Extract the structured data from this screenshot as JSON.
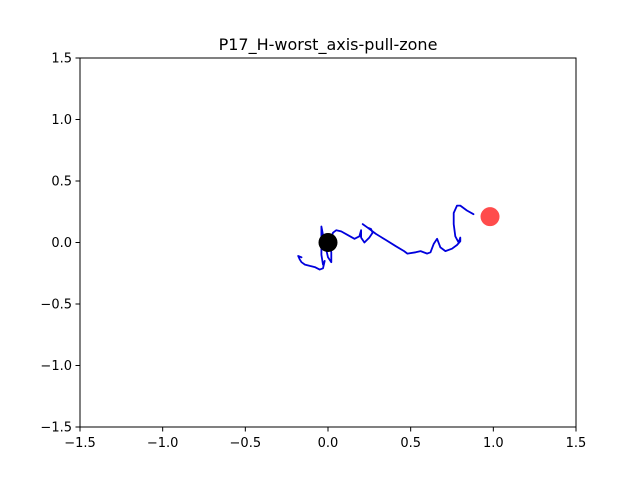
{
  "chart_data": {
    "type": "line",
    "title": "P17_H-worst_axis-pull-zone",
    "xlabel": "",
    "ylabel": "",
    "xlim": [
      -1.5,
      1.5
    ],
    "ylim": [
      -1.5,
      1.5
    ],
    "grid": false,
    "x_ticks": [
      -1.5,
      -1.0,
      -0.5,
      0.0,
      0.5,
      1.0,
      1.5
    ],
    "x_tick_labels": [
      "−1.5",
      "−1.0",
      "−0.5",
      "0.0",
      "0.5",
      "1.0",
      "1.5"
    ],
    "y_ticks": [
      -1.5,
      -1.0,
      -0.5,
      0.0,
      0.5,
      1.0,
      1.5
    ],
    "y_tick_labels": [
      "−1.5",
      "−1.0",
      "−0.5",
      "0.0",
      "0.5",
      "1.0",
      "1.5"
    ],
    "series": [
      {
        "color": "#0000dd",
        "points": [
          [
            0.88,
            0.23
          ],
          [
            0.84,
            0.26
          ],
          [
            0.8,
            0.3
          ],
          [
            0.78,
            0.3
          ],
          [
            0.76,
            0.24
          ],
          [
            0.76,
            0.15
          ],
          [
            0.77,
            0.05
          ],
          [
            0.79,
            0.0
          ],
          [
            0.8,
            0.04
          ],
          [
            0.8,
            0.01
          ],
          [
            0.78,
            -0.02
          ],
          [
            0.75,
            -0.05
          ],
          [
            0.71,
            -0.07
          ],
          [
            0.68,
            -0.04
          ],
          [
            0.66,
            0.03
          ],
          [
            0.64,
            -0.01
          ],
          [
            0.62,
            -0.08
          ],
          [
            0.6,
            -0.09
          ],
          [
            0.56,
            -0.07
          ],
          [
            0.53,
            -0.08
          ],
          [
            0.48,
            -0.09
          ],
          [
            0.46,
            -0.07
          ],
          [
            0.41,
            -0.03
          ],
          [
            0.35,
            0.02
          ],
          [
            0.29,
            0.07
          ],
          [
            0.24,
            0.12
          ],
          [
            0.21,
            0.15
          ],
          [
            0.24,
            0.12
          ],
          [
            0.26,
            0.11
          ],
          [
            0.27,
            0.08
          ],
          [
            0.25,
            0.04
          ],
          [
            0.22,
            0.0
          ],
          [
            0.2,
            0.04
          ],
          [
            0.2,
            0.1
          ],
          [
            0.19,
            0.05
          ],
          [
            0.16,
            0.03
          ],
          [
            0.12,
            0.06
          ],
          [
            0.08,
            0.09
          ],
          [
            0.05,
            0.1
          ],
          [
            0.03,
            0.08
          ],
          [
            0.02,
            0.04
          ],
          [
            0.01,
            -0.01
          ],
          [
            0.02,
            -0.08
          ],
          [
            0.02,
            -0.16
          ],
          [
            0.0,
            -0.12
          ],
          [
            -0.01,
            -0.06
          ],
          [
            -0.01,
            0.0
          ],
          [
            -0.02,
            0.03
          ],
          [
            -0.03,
            0.06
          ],
          [
            -0.04,
            0.13
          ],
          [
            -0.04,
            0.05
          ],
          [
            -0.04,
            -0.1
          ],
          [
            -0.03,
            -0.18
          ],
          [
            -0.02,
            -0.15
          ],
          [
            -0.03,
            -0.21
          ],
          [
            -0.05,
            -0.22
          ],
          [
            -0.08,
            -0.2
          ],
          [
            -0.11,
            -0.19
          ],
          [
            -0.14,
            -0.18
          ],
          [
            -0.16,
            -0.16
          ],
          [
            -0.17,
            -0.14
          ],
          [
            -0.18,
            -0.11
          ],
          [
            -0.16,
            -0.12
          ]
        ]
      }
    ],
    "markers": [
      {
        "x": 0.0,
        "y": 0.0,
        "color": "#000000",
        "opacity": 1.0
      },
      {
        "x": 0.98,
        "y": 0.21,
        "color": "#ff0000",
        "opacity": 0.7
      }
    ]
  }
}
